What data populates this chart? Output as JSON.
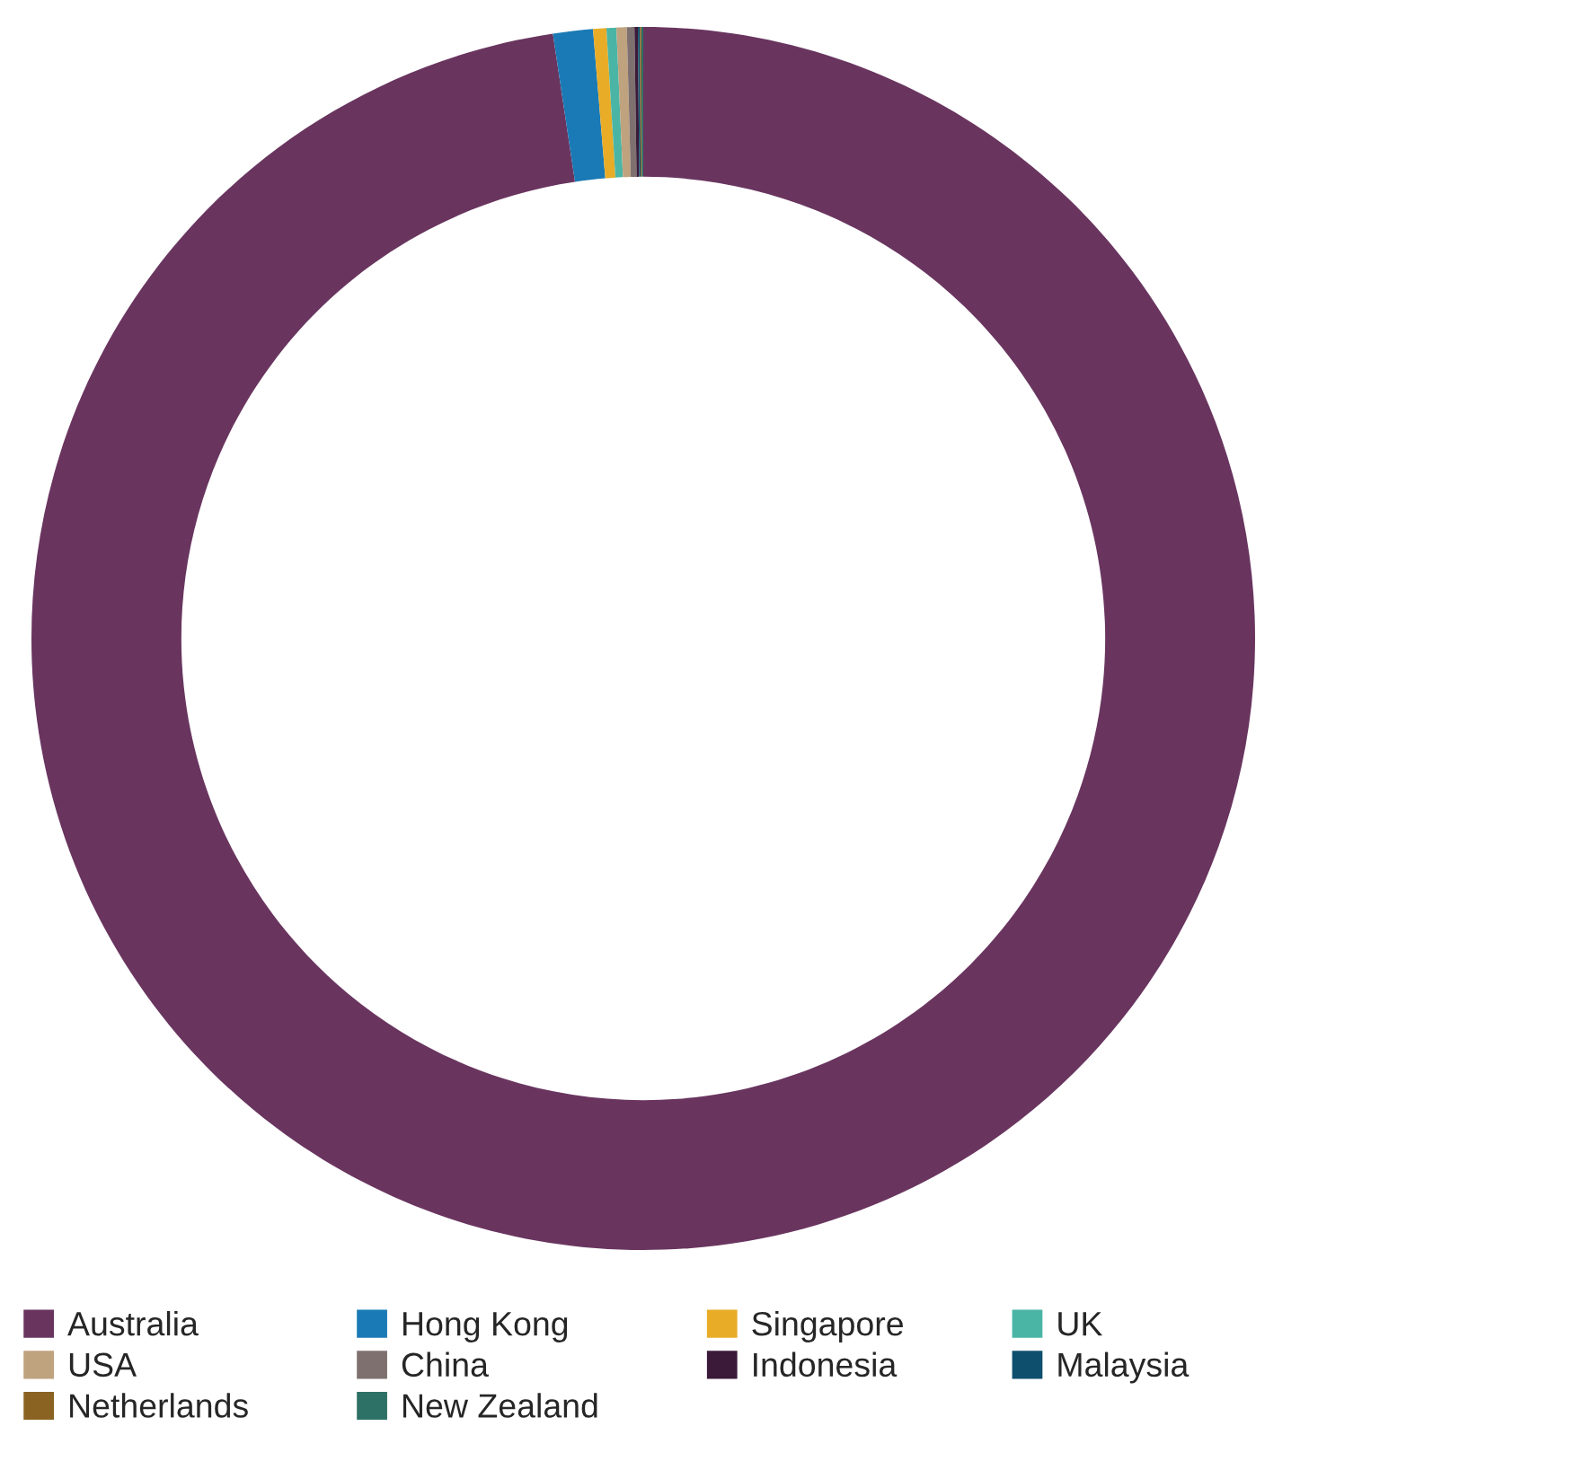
{
  "chart_data": {
    "type": "donut",
    "categories": [
      "Australia",
      "Hong Kong",
      "Singapore",
      "UK",
      "USA",
      "China",
      "Indonesia",
      "Malaysia",
      "Netherlands",
      "New Zealand"
    ],
    "values": [
      97.64,
      1.05,
      0.35,
      0.26,
      0.27,
      0.2,
      0.09,
      0.05,
      0.04,
      0.05
    ],
    "colors": [
      "#69355f",
      "#1a7ab5",
      "#e8ac27",
      "#4bb5a5",
      "#bfa27e",
      "#7f7070",
      "#3a1a38",
      "#0f4f6e",
      "#8a6222",
      "#2d7066"
    ],
    "legend": "bottom"
  }
}
